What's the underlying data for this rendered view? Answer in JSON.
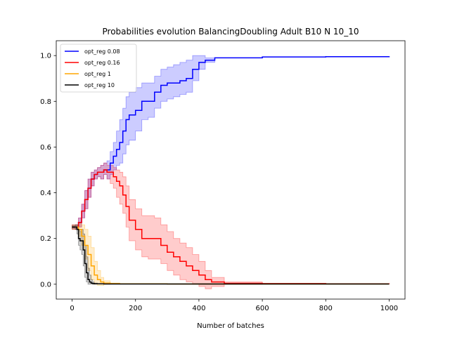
{
  "chart_data": {
    "type": "line",
    "title": "Probabilities evolution BalancingDoubling Adult B10 N 10_10",
    "xlabel": "Number of batches",
    "ylabel": "",
    "xlim": [
      -50,
      1050
    ],
    "ylim": [
      -0.065,
      1.065
    ],
    "xticks": [
      0,
      200,
      400,
      600,
      800,
      1000
    ],
    "yticks": [
      0.0,
      0.2,
      0.4,
      0.6,
      0.8,
      1.0
    ],
    "ytick_labels": [
      "0.0",
      "0.2",
      "0.4",
      "0.6",
      "0.8",
      "1.0"
    ],
    "grid": false,
    "legend_position": "upper-left",
    "series": [
      {
        "name": "opt_reg 0.08",
        "color": "#0000ff",
        "fill": "#0000ff",
        "x": [
          0,
          10,
          20,
          30,
          40,
          50,
          60,
          70,
          80,
          90,
          100,
          110,
          120,
          130,
          140,
          150,
          160,
          170,
          180,
          200,
          220,
          240,
          260,
          280,
          300,
          320,
          340,
          360,
          380,
          400,
          420,
          450,
          500,
          600,
          800,
          1000
        ],
        "y": [
          0.25,
          0.25,
          0.27,
          0.32,
          0.37,
          0.42,
          0.46,
          0.48,
          0.49,
          0.49,
          0.5,
          0.5,
          0.53,
          0.56,
          0.59,
          0.62,
          0.67,
          0.72,
          0.74,
          0.76,
          0.8,
          0.8,
          0.84,
          0.87,
          0.88,
          0.88,
          0.89,
          0.9,
          0.94,
          0.97,
          0.98,
          0.99,
          0.99,
          0.994,
          0.995,
          0.997
        ],
        "lower": [
          0.24,
          0.24,
          0.25,
          0.29,
          0.33,
          0.38,
          0.43,
          0.46,
          0.47,
          0.46,
          0.48,
          0.46,
          0.48,
          0.5,
          0.52,
          0.53,
          0.57,
          0.61,
          0.63,
          0.67,
          0.72,
          0.73,
          0.77,
          0.8,
          0.81,
          0.82,
          0.83,
          0.84,
          0.89,
          0.94,
          0.97,
          0.99,
          0.99,
          0.994,
          0.995,
          0.997
        ],
        "upper": [
          0.26,
          0.26,
          0.29,
          0.35,
          0.41,
          0.46,
          0.49,
          0.5,
          0.51,
          0.52,
          0.53,
          0.54,
          0.58,
          0.62,
          0.67,
          0.72,
          0.77,
          0.82,
          0.84,
          0.86,
          0.88,
          0.88,
          0.91,
          0.94,
          0.95,
          0.96,
          0.97,
          0.98,
          1.0,
          1.0,
          0.99,
          0.99,
          0.99,
          0.994,
          0.995,
          0.997
        ]
      },
      {
        "name": "opt_reg 0.16",
        "color": "#ff0000",
        "fill": "#ff0000",
        "x": [
          0,
          10,
          20,
          30,
          40,
          50,
          60,
          70,
          80,
          90,
          100,
          110,
          120,
          130,
          140,
          150,
          160,
          170,
          180,
          200,
          220,
          240,
          260,
          280,
          300,
          320,
          340,
          360,
          380,
          400,
          420,
          440,
          480,
          600,
          800,
          1000
        ],
        "y": [
          0.25,
          0.25,
          0.27,
          0.32,
          0.37,
          0.42,
          0.46,
          0.48,
          0.49,
          0.49,
          0.5,
          0.49,
          0.49,
          0.47,
          0.45,
          0.43,
          0.39,
          0.34,
          0.28,
          0.24,
          0.2,
          0.2,
          0.2,
          0.17,
          0.14,
          0.12,
          0.1,
          0.08,
          0.06,
          0.04,
          0.02,
          0.01,
          0.004,
          0.003,
          0.002,
          0.001
        ],
        "lower": [
          0.24,
          0.24,
          0.25,
          0.29,
          0.33,
          0.38,
          0.43,
          0.46,
          0.47,
          0.46,
          0.48,
          0.46,
          0.44,
          0.42,
          0.38,
          0.35,
          0.31,
          0.25,
          0.19,
          0.15,
          0.12,
          0.11,
          0.11,
          0.09,
          0.06,
          0.04,
          0.02,
          0.01,
          0.0,
          -0.01,
          -0.02,
          -0.01,
          0.0,
          0.003,
          0.002,
          0.001
        ],
        "upper": [
          0.26,
          0.26,
          0.29,
          0.35,
          0.41,
          0.46,
          0.49,
          0.5,
          0.51,
          0.52,
          0.53,
          0.52,
          0.52,
          0.51,
          0.5,
          0.49,
          0.47,
          0.43,
          0.37,
          0.33,
          0.3,
          0.3,
          0.29,
          0.26,
          0.23,
          0.2,
          0.18,
          0.16,
          0.13,
          0.1,
          0.06,
          0.03,
          0.01,
          0.003,
          0.002,
          0.001
        ]
      },
      {
        "name": "opt_reg 1",
        "color": "#ffa500",
        "fill": "#ffa500",
        "x": [
          0,
          10,
          20,
          30,
          40,
          50,
          60,
          70,
          80,
          90,
          100,
          120,
          150,
          200,
          300,
          1000
        ],
        "y": [
          0.25,
          0.25,
          0.24,
          0.21,
          0.17,
          0.13,
          0.08,
          0.04,
          0.02,
          0.01,
          0.005,
          0.003,
          0.002,
          0.002,
          0.001,
          0.001
        ],
        "lower": [
          0.24,
          0.24,
          0.21,
          0.17,
          0.11,
          0.06,
          0.02,
          0.0,
          -0.005,
          -0.005,
          0.0,
          0.002,
          0.002,
          0.002,
          0.001,
          0.001
        ],
        "upper": [
          0.26,
          0.26,
          0.27,
          0.26,
          0.24,
          0.21,
          0.16,
          0.1,
          0.06,
          0.03,
          0.015,
          0.005,
          0.003,
          0.002,
          0.001,
          0.001
        ]
      },
      {
        "name": "opt_reg 10",
        "color": "#000000",
        "fill": "#000000",
        "x": [
          0,
          5,
          10,
          15,
          20,
          25,
          30,
          35,
          40,
          45,
          50,
          55,
          60,
          65,
          70,
          80,
          100,
          150,
          200,
          300,
          1000
        ],
        "y": [
          0.25,
          0.25,
          0.25,
          0.24,
          0.2,
          0.19,
          0.19,
          0.15,
          0.09,
          0.05,
          0.02,
          0.01,
          0.005,
          0.003,
          0.002,
          0.002,
          0.001,
          0.001,
          0.001,
          0.001,
          0.001
        ],
        "lower": [
          0.245,
          0.245,
          0.24,
          0.22,
          0.17,
          0.15,
          0.13,
          0.08,
          0.03,
          0.01,
          0.0,
          0.0,
          0.0,
          0.0,
          0.001,
          0.001,
          0.001,
          0.001,
          0.001,
          0.001,
          0.001
        ],
        "upper": [
          0.255,
          0.255,
          0.26,
          0.26,
          0.24,
          0.23,
          0.24,
          0.22,
          0.17,
          0.12,
          0.07,
          0.04,
          0.02,
          0.01,
          0.005,
          0.003,
          0.002,
          0.001,
          0.001,
          0.001,
          0.001
        ]
      }
    ]
  }
}
